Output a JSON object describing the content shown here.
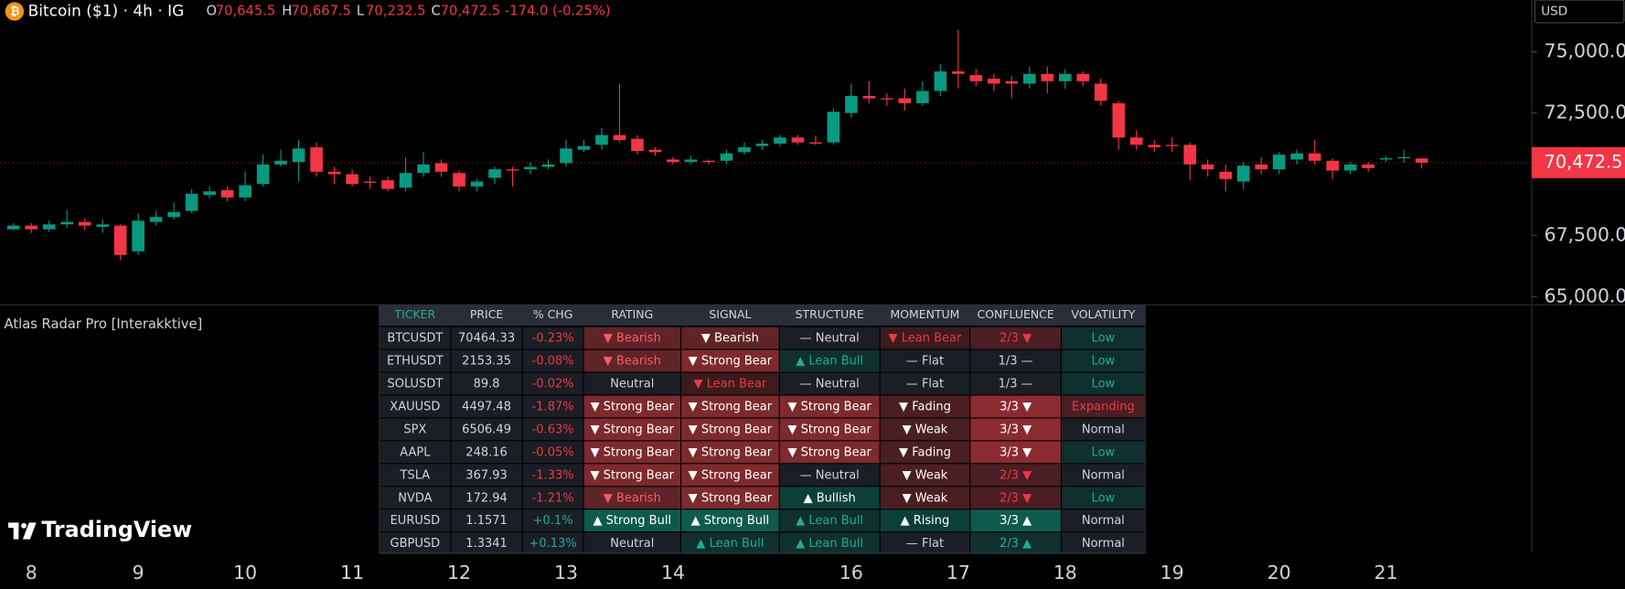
{
  "chart_data": {
    "type": "candlestick",
    "title": "Bitcoin ($1) · 4h · IG",
    "ohlc": [
      {
        "label": "O",
        "value": "70,645.5"
      },
      {
        "label": "H",
        "value": "70,667.5"
      },
      {
        "label": "L",
        "value": "70,232.5"
      },
      {
        "label": "C",
        "value": "70,472.5"
      }
    ],
    "change": "-174.0 (-0.25%)",
    "currency": "USD",
    "up_color": "#089981",
    "down_color": "#f23645",
    "categories": [
      null,
      "8",
      null,
      null,
      null,
      null,
      null,
      "9",
      null,
      null,
      null,
      null,
      null,
      "10",
      null,
      null,
      null,
      null,
      null,
      "11",
      null,
      null,
      null,
      null,
      null,
      "12",
      null,
      null,
      null,
      null,
      null,
      "13",
      null,
      null,
      null,
      null,
      null,
      "14",
      null,
      null,
      null,
      null,
      null,
      null,
      null,
      null,
      null,
      "16",
      null,
      null,
      null,
      null,
      null,
      "17",
      null,
      null,
      null,
      null,
      null,
      "18",
      null,
      null,
      null,
      null,
      null,
      "19",
      null,
      null,
      null,
      null,
      null,
      "20",
      null,
      null,
      null,
      null,
      null,
      "21",
      null,
      null
    ],
    "open": [
      67750,
      67900,
      67750,
      67950,
      68050,
      67850,
      67900,
      66850,
      68050,
      68250,
      68500,
      69150,
      69350,
      69050,
      69600,
      70400,
      70500,
      71100,
      70100,
      70000,
      69700,
      69750,
      69450,
      70050,
      70450,
      70050,
      69500,
      69850,
      70200,
      70200,
      70300,
      70450,
      71000,
      71200,
      71600,
      71450,
      71000,
      70600,
      70500,
      70550,
      70550,
      70900,
      71150,
      71250,
      71500,
      71300,
      71300,
      72500,
      73200,
      73100,
      73100,
      72900,
      73400,
      74200,
      74050,
      73900,
      73800,
      73700,
      74100,
      73800,
      74100,
      73700,
      72900,
      71500,
      71200,
      71200,
      71200,
      70400,
      70100,
      69700,
      70400,
      70200,
      70600,
      70850,
      70550,
      70150,
      70400,
      70600,
      70650,
      70645.5
    ],
    "high": [
      68000,
      68000,
      68100,
      68550,
      68200,
      68150,
      67950,
      68400,
      68500,
      68850,
      69400,
      69500,
      69500,
      70100,
      70800,
      71000,
      71400,
      71300,
      70300,
      70200,
      69900,
      69900,
      70700,
      70900,
      70600,
      70150,
      69800,
      70300,
      70300,
      70500,
      70600,
      71400,
      71400,
      71900,
      73700,
      71600,
      71100,
      70700,
      70750,
      70600,
      71000,
      71300,
      71400,
      71600,
      71600,
      71550,
      72700,
      73700,
      73800,
      73300,
      73500,
      73800,
      74500,
      75900,
      74300,
      74100,
      74000,
      74400,
      74400,
      74300,
      74200,
      73900,
      73000,
      71800,
      71400,
      71500,
      71300,
      70600,
      70400,
      70500,
      70700,
      70900,
      71000,
      71400,
      70650,
      70500,
      70500,
      70750,
      71000,
      70667.5
    ],
    "low": [
      67700,
      67600,
      67650,
      67800,
      67700,
      67600,
      66500,
      66700,
      67900,
      68150,
      68400,
      69000,
      68900,
      68900,
      69500,
      70300,
      69700,
      69900,
      69600,
      69500,
      69400,
      69300,
      69300,
      69900,
      69900,
      69300,
      69300,
      69600,
      69500,
      70000,
      70200,
      70300,
      70900,
      71000,
      71300,
      70800,
      70750,
      70400,
      70400,
      70400,
      70400,
      70800,
      71000,
      71150,
      71200,
      71200,
      71200,
      72300,
      72900,
      72800,
      72600,
      72800,
      73200,
      73500,
      73600,
      73400,
      73100,
      73500,
      73300,
      73500,
      73600,
      72800,
      71000,
      71000,
      70900,
      70900,
      69750,
      69900,
      69300,
      69400,
      70000,
      70000,
      70400,
      70400,
      69800,
      70000,
      70100,
      70500,
      70450,
      70232.5
    ],
    "close": [
      67900,
      67750,
      67950,
      68050,
      67900,
      67950,
      66700,
      68100,
      68250,
      68450,
      69200,
      69300,
      69050,
      69550,
      70400,
      70550,
      71050,
      70100,
      70000,
      69600,
      69650,
      69400,
      70050,
      70400,
      70100,
      69500,
      69700,
      70200,
      70150,
      70300,
      70400,
      71050,
      71150,
      71600,
      71400,
      70950,
      70900,
      70500,
      70600,
      70500,
      70850,
      71100,
      71250,
      71500,
      71300,
      71250,
      72550,
      73200,
      73100,
      73050,
      72900,
      73400,
      74200,
      74100,
      73800,
      73700,
      73700,
      74100,
      73800,
      74100,
      73800,
      73000,
      71500,
      71200,
      71100,
      71150,
      70400,
      70200,
      69800,
      70350,
      70200,
      70800,
      70850,
      70550,
      70150,
      70400,
      70250,
      70650,
      70700,
      70472.5
    ],
    "last_price": {
      "value": 70472.5,
      "label": "70,472.5"
    },
    "ylim": [
      64704,
      77118
    ],
    "yticks": [
      {
        "value": 65000,
        "label": "65,000.0"
      },
      {
        "value": 67500,
        "label": "67,500.0"
      },
      {
        "value": 72500,
        "label": "72,500.0"
      },
      {
        "value": 75000,
        "label": "75,000.0"
      }
    ]
  },
  "table": {
    "title": "Atlas Radar Pro [Interakktive]",
    "columns": [
      "TICKER",
      "PRICE",
      "% CHG",
      "RATING",
      "SIGNAL",
      "STRUCTURE",
      "MOMENTUM",
      "CONFLUENCE",
      "VOLATILITY"
    ],
    "rows": [
      [
        "BTCUSDT",
        "70464.33",
        "-0.23%",
        "▼ Bearish",
        "▼ Bearish",
        "— Neutral",
        "▼ Lean Bear",
        "2/3 ▼",
        "Low"
      ],
      [
        "ETHUSDT",
        "2153.35",
        "-0.08%",
        "▼ Bearish",
        "▼ Strong Bear",
        "▲ Lean Bull",
        "— Flat",
        "1/3 —",
        "Low"
      ],
      [
        "SOLUSDT",
        "89.8",
        "-0.02%",
        "Neutral",
        "▼ Lean Bear",
        "— Neutral",
        "— Flat",
        "1/3 —",
        "Low"
      ],
      [
        "XAUUSD",
        "4497.48",
        "-1.87%",
        "▼ Strong Bear",
        "▼ Strong Bear",
        "▼ Strong Bear",
        "▼ Fading",
        "3/3 ▼",
        "Expanding"
      ],
      [
        "SPX",
        "6506.49",
        "-0.63%",
        "▼ Strong Bear",
        "▼ Strong Bear",
        "▼ Strong Bear",
        "▼ Weak",
        "3/3 ▼",
        "Normal"
      ],
      [
        "AAPL",
        "248.16",
        "-0.05%",
        "▼ Strong Bear",
        "▼ Strong Bear",
        "▼ Strong Bear",
        "▼ Fading",
        "3/3 ▼",
        "Low"
      ],
      [
        "TSLA",
        "367.93",
        "-1.33%",
        "▼ Strong Bear",
        "▼ Strong Bear",
        "— Neutral",
        "▼ Weak",
        "2/3 ▼",
        "Normal"
      ],
      [
        "NVDA",
        "172.94",
        "-1.21%",
        "▼ Bearish",
        "▼ Strong Bear",
        "▲ Bullish",
        "▼ Weak",
        "2/3 ▼",
        "Low"
      ],
      [
        "EURUSD",
        "1.1571",
        "+0.1%",
        "▲ Strong Bull",
        "▲ Strong Bull",
        "▲ Lean Bull",
        "▲ Rising",
        "3/3 ▲",
        "Normal"
      ],
      [
        "GBPUSD",
        "1.3341",
        "+0.13%",
        "Neutral",
        "▲ Lean Bull",
        "▲ Lean Bull",
        "— Flat",
        "2/3 ▲",
        "Normal"
      ]
    ]
  },
  "branding": "TradingView"
}
